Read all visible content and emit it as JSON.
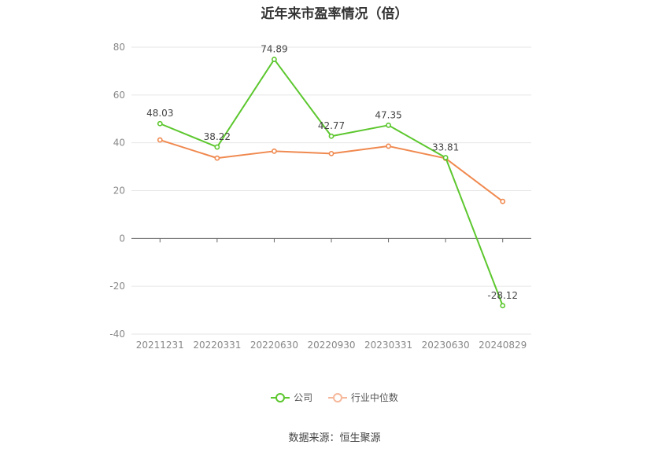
{
  "chart_data": {
    "type": "line",
    "title": "近年来市盈率情况（倍）",
    "categories": [
      "20211231",
      "20220331",
      "20220630",
      "20220930",
      "20230331",
      "20230630",
      "20240829"
    ],
    "ylim": [
      -40,
      80
    ],
    "yticks": [
      80,
      60,
      40,
      20,
      0,
      -20,
      -40
    ],
    "grid": true,
    "legend_position": "bottom",
    "series": [
      {
        "name": "公司",
        "color": "#5cc72e",
        "values": [
          48.03,
          38.22,
          74.89,
          42.77,
          47.35,
          33.81,
          -28.12
        ],
        "labels": [
          "48.03",
          "38.22",
          "74.89",
          "42.77",
          "47.35",
          "33.81",
          "-28.12"
        ]
      },
      {
        "name": "行业中位数",
        "color": "#f0894f",
        "values": [
          41.2,
          33.6,
          36.5,
          35.5,
          38.6,
          33.5,
          15.5
        ]
      }
    ],
    "source": "数据来源：恒生聚源"
  }
}
